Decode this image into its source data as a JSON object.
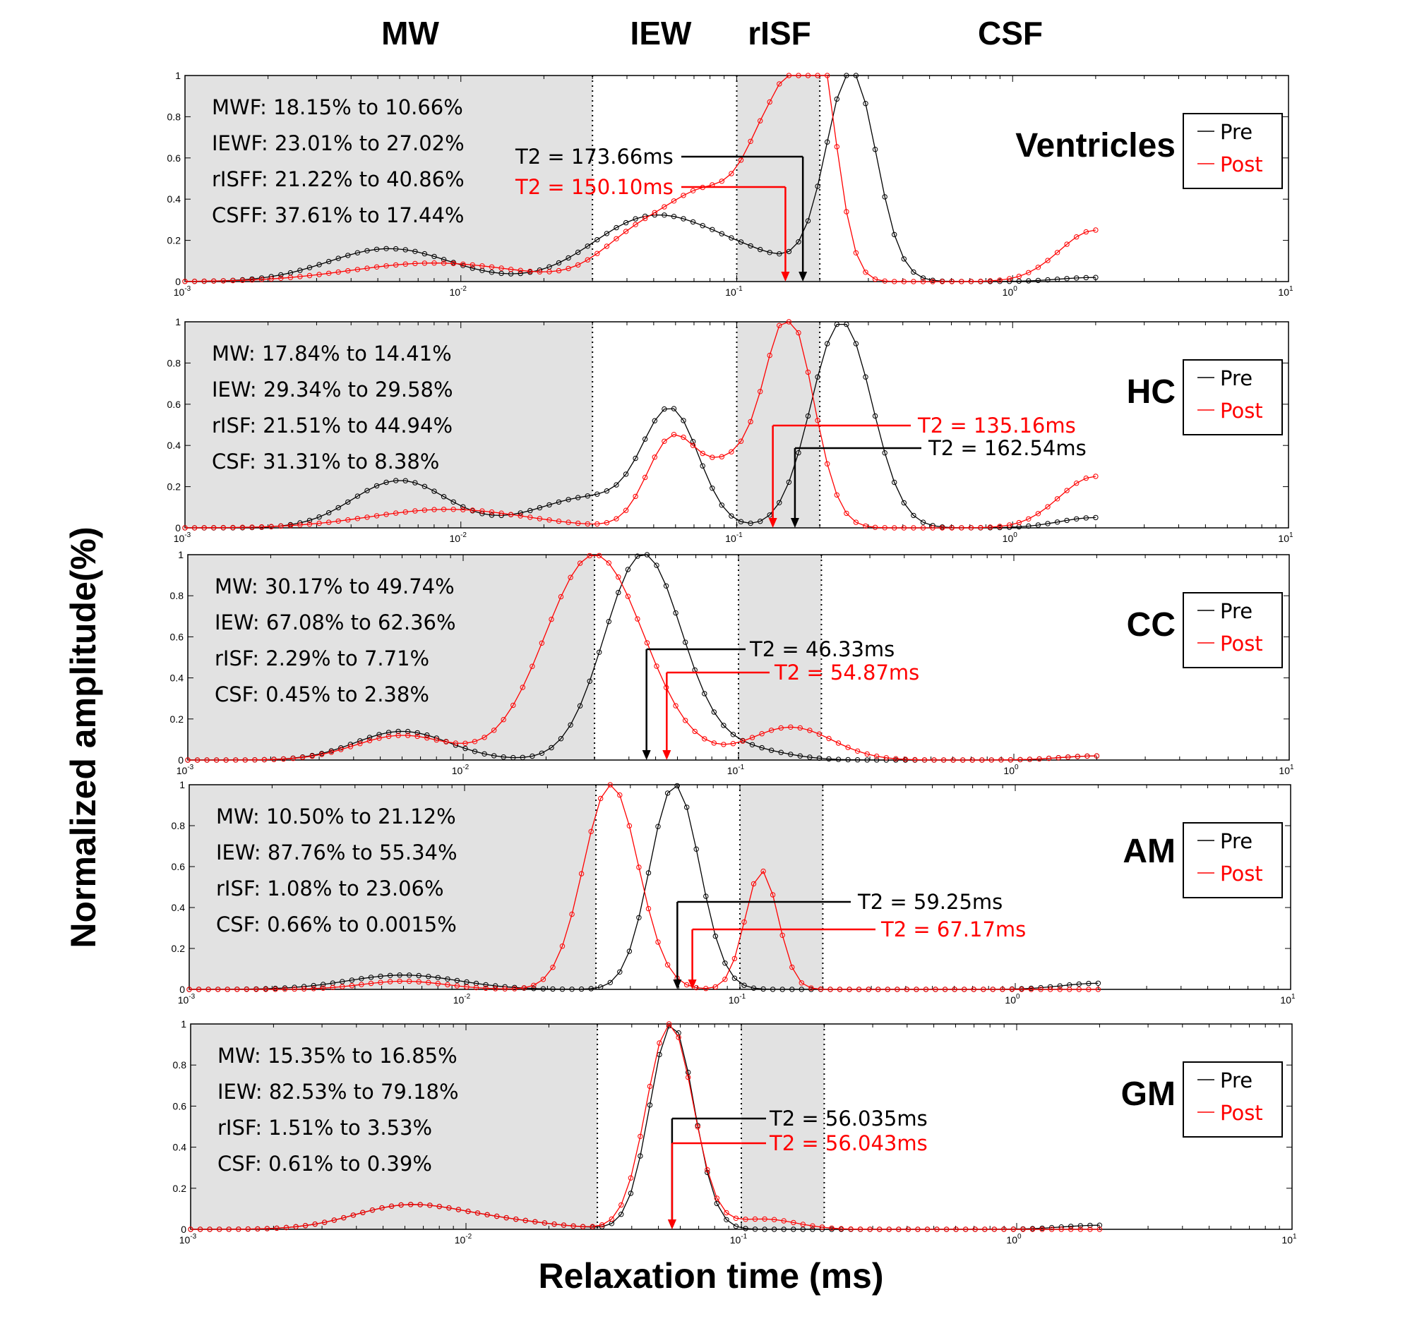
{
  "figure": {
    "x_axis_title": "Relaxation time (ms)",
    "y_axis_title": "Normalized amplitude(%)",
    "compartment_headers": [
      "MW",
      "IEW",
      "rISF",
      "CSF"
    ],
    "legend": [
      "Pre",
      "Post"
    ],
    "colors": {
      "pre": "#000000",
      "post": "#ff0000",
      "shade": "#e2e2e2"
    }
  },
  "chart_data": [
    {
      "type": "line",
      "region": "Ventricles",
      "xscale": "log",
      "xlim": [
        0.001,
        10
      ],
      "ylim": [
        0,
        1
      ],
      "xticks": [
        "10-3",
        "10-2",
        "10-1",
        "100",
        "101"
      ],
      "yticks": [
        "0",
        "0.2",
        "0.4",
        "0.6",
        "0.8",
        "1"
      ],
      "shaded_ranges": [
        [
          0.001,
          0.03
        ],
        [
          0.1,
          0.2
        ]
      ],
      "stats": [
        "MWF: 18.15% to 10.66%",
        "IEWF: 23.01% to 27.02%",
        "rISFF: 21.22% to 40.86%",
        "CSFF: 37.61% to 17.44%"
      ],
      "series": [
        {
          "name": "Pre",
          "peaks": [
            [
              0.0055,
              0.16,
              0.22
            ],
            [
              0.045,
              0.24,
              0.2
            ],
            [
              0.09,
              0.15,
              0.25
            ],
            [
              0.26,
              1.0,
              0.09
            ]
          ],
          "tail": 0.02,
          "t2": {
            "label": "T2 = 173.66ms",
            "value": 0.17366
          }
        },
        {
          "name": "Post",
          "peaks": [
            [
              0.008,
              0.09,
              0.3
            ],
            [
              0.045,
              0.23,
              0.14
            ],
            [
              0.08,
              0.38,
              0.13
            ],
            [
              0.14,
              0.75,
              0.1
            ],
            [
              0.195,
              1.0,
              0.07
            ]
          ],
          "tail": 0.25,
          "t2": {
            "label": "T2 = 150.10ms",
            "value": 0.1501
          }
        }
      ]
    },
    {
      "type": "line",
      "region": "HC",
      "xscale": "log",
      "xlim": [
        0.001,
        10
      ],
      "ylim": [
        0,
        1
      ],
      "xticks": [
        "10-3",
        "10-2",
        "10-1",
        "100",
        "101"
      ],
      "yticks": [
        "0",
        "0.2",
        "0.4",
        "0.6",
        "0.8",
        "1"
      ],
      "shaded_ranges": [
        [
          0.001,
          0.03
        ],
        [
          0.1,
          0.2
        ]
      ],
      "stats": [
        "MW: 17.84% to 14.41%",
        "IEW: 29.34% to 29.58%",
        "rISF: 21.51% to 44.94%",
        "CSF: 31.31% to 8.38%"
      ],
      "series": [
        {
          "name": "Pre",
          "peaks": [
            [
              0.006,
              0.23,
              0.17
            ],
            [
              0.03,
              0.15,
              0.2
            ],
            [
              0.058,
              0.53,
              0.1
            ],
            [
              0.24,
              1.0,
              0.11
            ]
          ],
          "tail": 0.05,
          "t2": {
            "label": "T2 = 162.54ms",
            "value": 0.16254
          }
        },
        {
          "name": "Post",
          "peaks": [
            [
              0.009,
              0.09,
              0.28
            ],
            [
              0.058,
              0.42,
              0.09
            ],
            [
              0.095,
              0.28,
              0.1
            ],
            [
              0.155,
              1.0,
              0.09
            ]
          ],
          "tail": 0.25,
          "t2": {
            "label": "T2 = 135.16ms",
            "value": 0.13516
          }
        }
      ]
    },
    {
      "type": "line",
      "region": "CC",
      "xscale": "log",
      "xlim": [
        0.001,
        10
      ],
      "ylim": [
        0,
        1
      ],
      "xticks": [
        "10-3",
        "10-2",
        "10-1",
        "100",
        "101"
      ],
      "yticks": [
        "0",
        "0.2",
        "0.4",
        "0.6",
        "0.8",
        "1"
      ],
      "shaded_ranges": [
        [
          0.001,
          0.03
        ],
        [
          0.1,
          0.2
        ]
      ],
      "stats": [
        "MW: 30.17% to 49.74%",
        "IEW: 67.08% to 62.36%",
        "rISF: 2.29% to 7.71%",
        "CSF: 0.45% to 2.38%"
      ],
      "series": [
        {
          "name": "Pre",
          "peaks": [
            [
              0.006,
              0.14,
              0.17
            ],
            [
              0.045,
              1.0,
              0.14
            ],
            [
              0.1,
              0.06,
              0.15
            ]
          ],
          "tail": 0.02,
          "t2": {
            "label": "T2 = 46.33ms",
            "value": 0.04633
          }
        },
        {
          "name": "Post",
          "peaks": [
            [
              0.006,
              0.12,
              0.17
            ],
            [
              0.03,
              1.0,
              0.18
            ],
            [
              0.155,
              0.16,
              0.15
            ]
          ],
          "tail": 0.02,
          "t2": {
            "label": "T2 = 54.87ms",
            "value": 0.05487
          }
        }
      ]
    },
    {
      "type": "line",
      "region": "AM",
      "xscale": "log",
      "xlim": [
        0.001,
        10
      ],
      "ylim": [
        0,
        1
      ],
      "xticks": [
        "10-3",
        "10-2",
        "10-1",
        "100",
        "101"
      ],
      "yticks": [
        "0",
        "0.2",
        "0.4",
        "0.6",
        "0.8",
        "1"
      ],
      "shaded_ranges": [
        [
          0.001,
          0.03
        ],
        [
          0.1,
          0.2
        ]
      ],
      "stats": [
        "MW: 10.50% to 21.12%",
        "IEW: 87.76% to 55.34%",
        "rISF: 1.08% to 23.06%",
        "CSF: 0.66% to 0.0015%"
      ],
      "series": [
        {
          "name": "Pre",
          "peaks": [
            [
              0.006,
              0.07,
              0.2
            ],
            [
              0.058,
              1.0,
              0.09
            ]
          ],
          "tail": 0.03,
          "t2": {
            "label": "T2 = 59.25ms",
            "value": 0.05925
          }
        },
        {
          "name": "Post",
          "peaks": [
            [
              0.006,
              0.04,
              0.15
            ],
            [
              0.034,
              1.0,
              0.1
            ],
            [
              0.12,
              0.58,
              0.06
            ]
          ],
          "tail": 0.0,
          "t2": {
            "label": "T2 = 67.17ms",
            "value": 0.06717
          }
        }
      ]
    },
    {
      "type": "line",
      "region": "GM",
      "xscale": "log",
      "xlim": [
        0.001,
        10
      ],
      "ylim": [
        0,
        1
      ],
      "xticks": [
        "10-3",
        "10-2",
        "10-1",
        "100",
        "101"
      ],
      "yticks": [
        "0",
        "0.2",
        "0.4",
        "0.6",
        "0.8",
        "1"
      ],
      "shaded_ranges": [
        [
          0.001,
          0.03
        ],
        [
          0.1,
          0.2
        ]
      ],
      "stats": [
        "MW: 15.35% to 16.85%",
        "IEW: 82.53% to 79.18%",
        "rISF: 1.51% to 3.53%",
        "CSF: 0.61% to 0.39%"
      ],
      "series": [
        {
          "name": "Pre",
          "peaks": [
            [
              0.006,
              0.11,
              0.19
            ],
            [
              0.013,
              0.04,
              0.2
            ],
            [
              0.056,
              1.0,
              0.08
            ]
          ],
          "tail": 0.02,
          "t2": {
            "label": "T2 = 56.035ms",
            "value": 0.056035
          }
        },
        {
          "name": "Post",
          "peaks": [
            [
              0.006,
              0.11,
              0.19
            ],
            [
              0.013,
              0.04,
              0.2
            ],
            [
              0.055,
              1.0,
              0.085
            ],
            [
              0.12,
              0.05,
              0.12
            ]
          ],
          "tail": 0.0,
          "t2": {
            "label": "T2 = 56.043ms",
            "value": 0.056043
          }
        }
      ]
    }
  ]
}
